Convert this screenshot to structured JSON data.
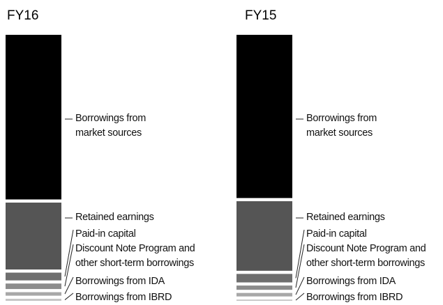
{
  "chart_data": [
    {
      "type": "stacked-bar",
      "title": "FY16",
      "series": [
        {
          "name": "Borrowings from market sources",
          "color": "#000000",
          "values": [
            65.7
          ]
        },
        {
          "name": "Retained earnings",
          "color": "#555555",
          "values": [
            26.7
          ]
        },
        {
          "name": "Paid-in capital",
          "color": "#6e6e6e",
          "values": [
            3.1
          ]
        },
        {
          "name": "Discount Note Program and other short-term borrowings",
          "color": "#8c8c8c",
          "values": [
            2.2
          ]
        },
        {
          "name": "Borrowings from IDA",
          "color": "#a8a8a8",
          "values": [
            1.4
          ]
        },
        {
          "name": "Borrowings from IBRD",
          "color": "#c4c4c4",
          "values": [
            0.8
          ]
        }
      ]
    },
    {
      "type": "stacked-bar",
      "title": "FY15",
      "series": [
        {
          "name": "Borrowings from market sources",
          "color": "#000000",
          "values": [
            65.2
          ]
        },
        {
          "name": "Retained earnings",
          "color": "#555555",
          "values": [
            27.8
          ]
        },
        {
          "name": "Paid-in capital",
          "color": "#6e6e6e",
          "values": [
            3.4
          ]
        },
        {
          "name": "Discount Note Program and other short-term borrowings",
          "color": "#8c8c8c",
          "values": [
            1.7
          ]
        },
        {
          "name": "Borrowings from IDA",
          "color": "#a8a8a8",
          "values": [
            1.4
          ]
        },
        {
          "name": "Borrowings from IBRD",
          "color": "#c4c4c4",
          "values": [
            0.5
          ]
        }
      ]
    }
  ]
}
